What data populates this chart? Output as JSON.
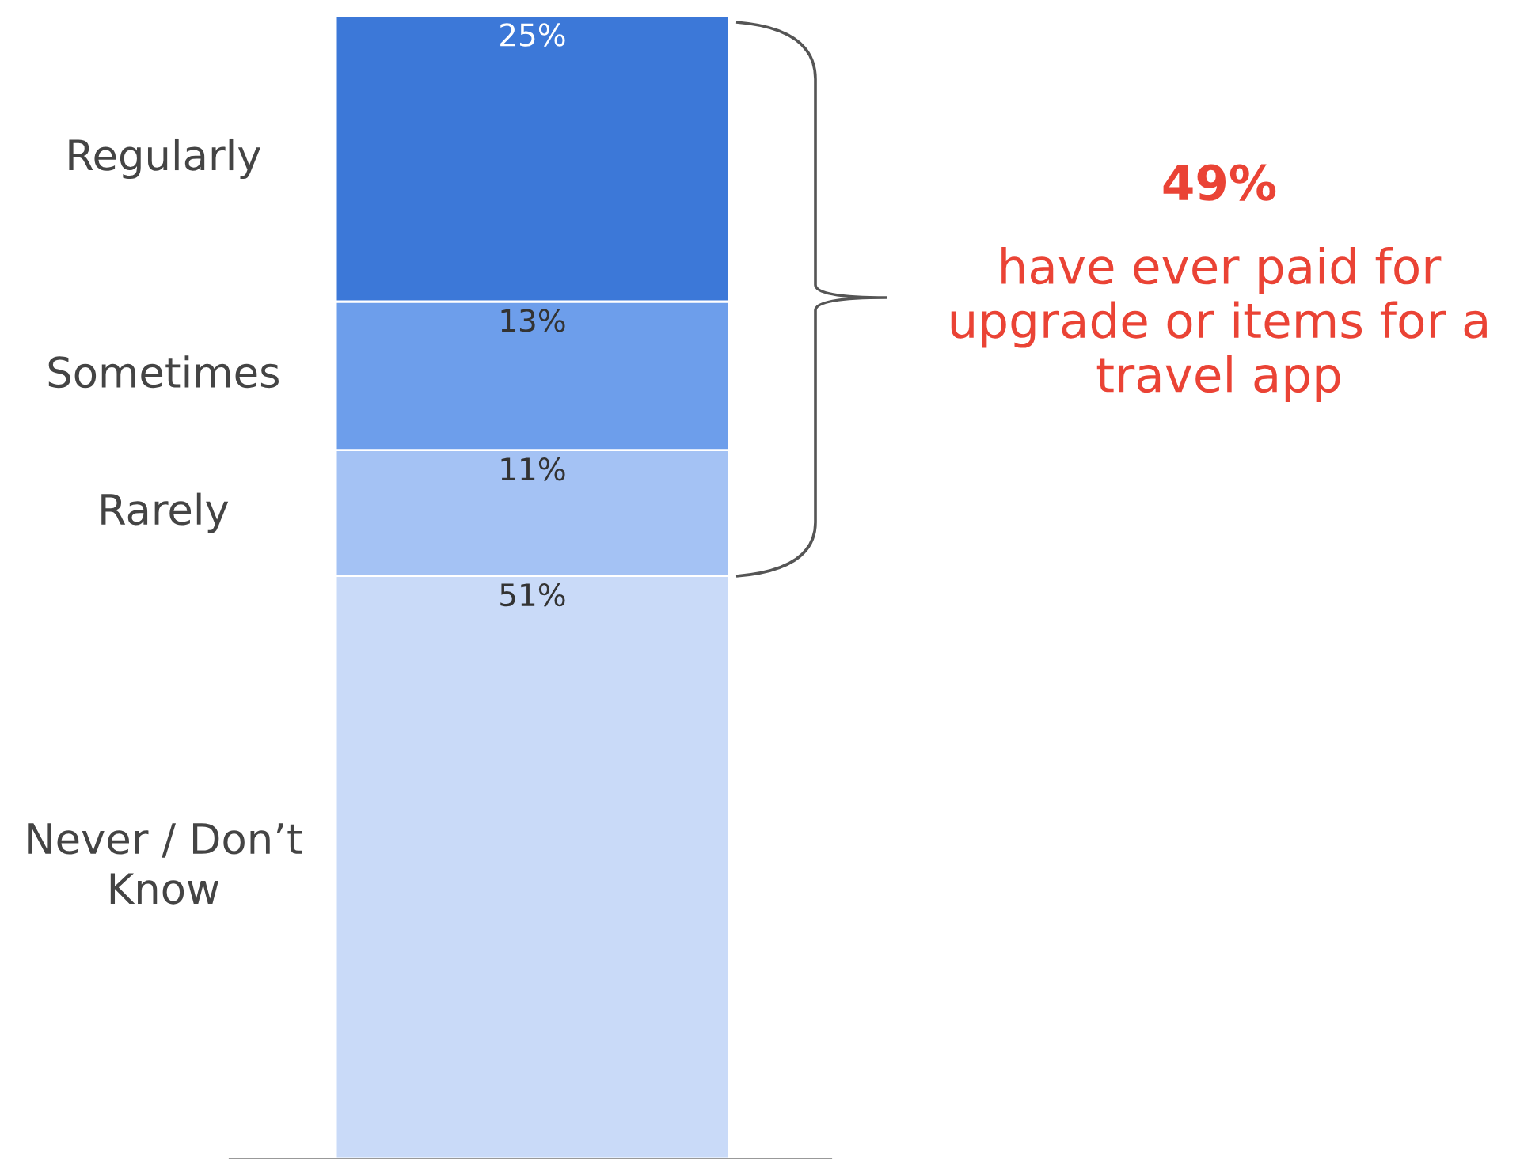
{
  "chart_data": {
    "type": "bar",
    "stacked": true,
    "categories": [
      null
    ],
    "ylim": [
      0,
      100
    ],
    "series": [
      {
        "name": "Never / Don’t\nKnow",
        "color": "#c9daf8",
        "values": [
          51
        ],
        "value_labels": [
          "51%"
        ]
      },
      {
        "name": "Rarely",
        "color": "#a4c2f4",
        "values": [
          11
        ],
        "value_labels": [
          "11%"
        ]
      },
      {
        "name": "Sometimes",
        "color": "#6d9eeb",
        "values": [
          13
        ],
        "value_labels": [
          "13%"
        ]
      },
      {
        "name": "Regularly",
        "color": "#3c78d8",
        "values": [
          25
        ],
        "value_labels": [
          "25%"
        ]
      }
    ],
    "annotations": [
      "49%",
      "have ever paid for\nupgrade or items for a\ntravel app"
    ]
  }
}
